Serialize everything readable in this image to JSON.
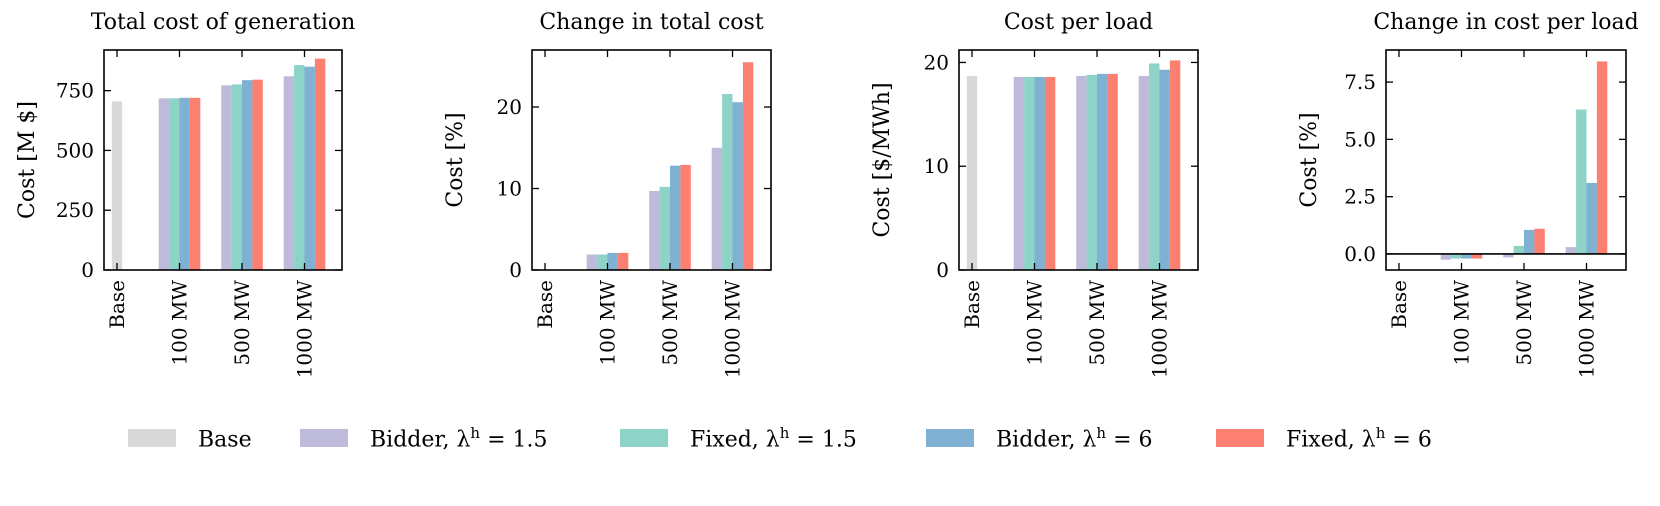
{
  "colors": {
    "Base": "#d9d9d9",
    "Bidder, λh = 1.5": "#bebada",
    "Fixed, λh = 1.5": "#8dd3c7",
    "Bidder, λh = 6": "#80b1d3",
    "Fixed, λh = 6": "#fb8072"
  },
  "legend": {
    "items": [
      {
        "series": "Base",
        "pre": "Base",
        "sup": "",
        "post": ""
      },
      {
        "series": "Bidder, λh = 1.5",
        "pre": "Bidder, λ",
        "sup": "h",
        "post": " = 1.5"
      },
      {
        "series": "Fixed, λh = 1.5",
        "pre": "Fixed, λ",
        "sup": "h",
        "post": " = 1.5"
      },
      {
        "series": "Bidder, λh = 6",
        "pre": "Bidder, λ",
        "sup": "h",
        "post": " = 6"
      },
      {
        "series": "Fixed, λh = 6",
        "pre": "Fixed, λ",
        "sup": "h",
        "post": " = 6"
      }
    ]
  },
  "chart_data": [
    {
      "type": "bar",
      "title": "Total cost of generation",
      "ylabel": "Cost [M $]",
      "xlabel": "",
      "categories": [
        "Base",
        "100 MW",
        "500 MW",
        "1000 MW"
      ],
      "ylim": [
        0,
        920
      ],
      "yticks": [
        0,
        250,
        500,
        750
      ],
      "grid": false,
      "series": [
        {
          "name": "Base",
          "values": [
            705,
            null,
            null,
            null
          ]
        },
        {
          "name": "Bidder, λh = 1.5",
          "values": [
            null,
            718,
            772,
            810
          ]
        },
        {
          "name": "Fixed, λh = 1.5",
          "values": [
            null,
            718,
            776,
            857
          ]
        },
        {
          "name": "Bidder, λh = 6",
          "values": [
            null,
            720,
            794,
            850
          ]
        },
        {
          "name": "Fixed, λh = 6",
          "values": [
            null,
            720,
            796,
            884
          ]
        }
      ]
    },
    {
      "type": "bar",
      "title": "Change in total cost",
      "ylabel": "Cost [%]",
      "xlabel": "",
      "categories": [
        "Base",
        "100 MW",
        "500 MW",
        "1000 MW"
      ],
      "ylim": [
        0,
        27
      ],
      "yticks": [
        0,
        10,
        20
      ],
      "grid": false,
      "series": [
        {
          "name": "Base",
          "values": [
            0,
            null,
            null,
            null
          ]
        },
        {
          "name": "Bidder, λh = 1.5",
          "values": [
            null,
            1.9,
            9.7,
            15.0
          ]
        },
        {
          "name": "Fixed, λh = 1.5",
          "values": [
            null,
            1.9,
            10.2,
            21.6
          ]
        },
        {
          "name": "Bidder, λh = 6",
          "values": [
            null,
            2.1,
            12.8,
            20.6
          ]
        },
        {
          "name": "Fixed, λh = 6",
          "values": [
            null,
            2.1,
            12.9,
            25.5
          ]
        }
      ]
    },
    {
      "type": "bar",
      "title": "Cost per load",
      "ylabel": "Cost [$/MWh]",
      "xlabel": "",
      "categories": [
        "Base",
        "100 MW",
        "500 MW",
        "1000 MW"
      ],
      "ylim": [
        0,
        21.2
      ],
      "yticks": [
        0,
        10,
        20
      ],
      "grid": false,
      "series": [
        {
          "name": "Base",
          "values": [
            18.7,
            null,
            null,
            null
          ]
        },
        {
          "name": "Bidder, λh = 1.5",
          "values": [
            null,
            18.6,
            18.7,
            18.7
          ]
        },
        {
          "name": "Fixed, λh = 1.5",
          "values": [
            null,
            18.6,
            18.8,
            19.9
          ]
        },
        {
          "name": "Bidder, λh = 6",
          "values": [
            null,
            18.6,
            18.9,
            19.3
          ]
        },
        {
          "name": "Fixed, λh = 6",
          "values": [
            null,
            18.6,
            18.9,
            20.2
          ]
        }
      ]
    },
    {
      "type": "bar",
      "title": "Change in cost per load",
      "ylabel": "Cost [%]",
      "xlabel": "",
      "categories": [
        "Base",
        "100 MW",
        "500 MW",
        "1000 MW"
      ],
      "ylim": [
        -0.7,
        8.9
      ],
      "yticks": [
        0.0,
        2.5,
        5.0,
        7.5
      ],
      "zero_line": true,
      "grid": false,
      "series": [
        {
          "name": "Base",
          "values": [
            0,
            null,
            null,
            null
          ]
        },
        {
          "name": "Bidder, λh = 1.5",
          "values": [
            null,
            -0.25,
            -0.15,
            0.3
          ]
        },
        {
          "name": "Fixed, λh = 1.5",
          "values": [
            null,
            -0.2,
            0.35,
            6.3
          ]
        },
        {
          "name": "Bidder, λh = 6",
          "values": [
            null,
            -0.2,
            1.05,
            3.1
          ]
        },
        {
          "name": "Fixed, λh = 6",
          "values": [
            null,
            -0.2,
            1.1,
            8.4
          ]
        }
      ]
    }
  ]
}
